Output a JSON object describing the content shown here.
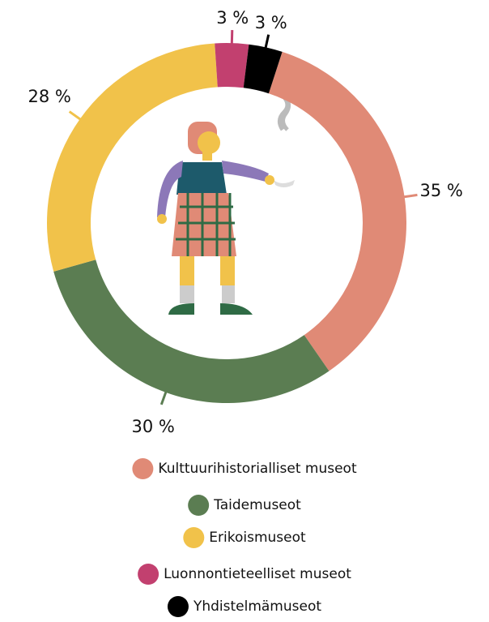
{
  "chart_data": {
    "type": "donut",
    "categories": [
      "Kulttuurihistorialliset museot",
      "Taidemuseot",
      "Erikoismuseot",
      "Luonnontieteelliset museot",
      "Yhdistelmämuseot"
    ],
    "values": [
      35,
      30,
      28,
      3,
      3
    ],
    "value_labels": [
      "35 %",
      "30 %",
      "28 %",
      "3 %",
      "3 %"
    ],
    "colors": [
      "#e08a76",
      "#5b7d52",
      "#f1c24a",
      "#c2406f",
      "#000000"
    ]
  }
}
